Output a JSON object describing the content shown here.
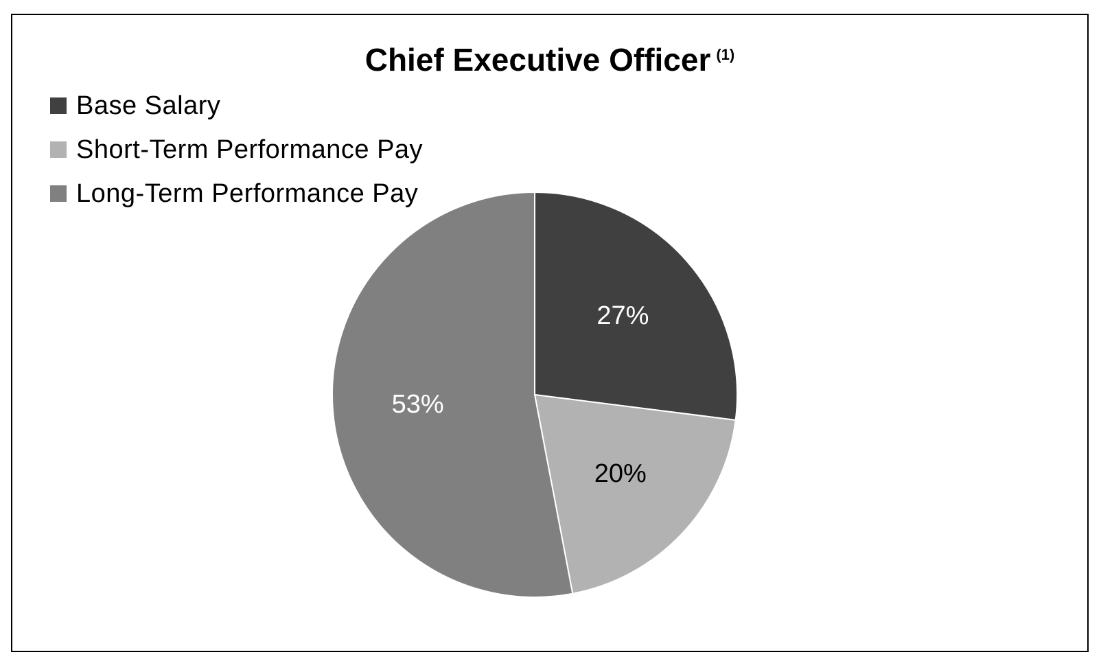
{
  "chart_data": {
    "type": "pie",
    "title": "Chief Executive Officer",
    "title_superscript": "(1)",
    "legend_position": "top-left",
    "slices": [
      {
        "label": "Base Salary",
        "value": 27,
        "display": "27%",
        "color": "#404040",
        "label_color": "#ffffff"
      },
      {
        "label": "Short-Term Performance Pay",
        "value": 20,
        "display": "20%",
        "color": "#b2b2b2",
        "label_color": "#000000"
      },
      {
        "label": "Long-Term Performance Pay",
        "value": 53,
        "display": "53%",
        "color": "#808080",
        "label_color": "#ffffff"
      }
    ]
  }
}
